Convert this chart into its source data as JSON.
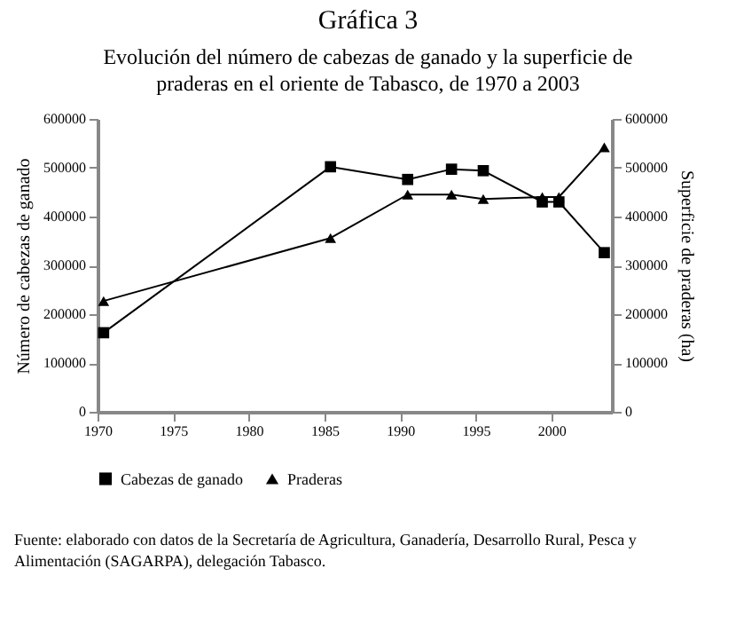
{
  "chart_data": {
    "type": "line",
    "title": "Gráfica 3",
    "subtitle": "Evolución del número de cabezas de ganado y la superficie de praderas en el oriente de Tabasco, de 1970 a 2003",
    "xlabel": null,
    "ylabel": "Número de cabezas de ganado",
    "y2label": "Superficie de praderas (ha)",
    "x": [
      1970.4,
      1985.4,
      1990.5,
      1993.4,
      1995.5,
      1999.4,
      2000.5,
      2003.5
    ],
    "series": [
      {
        "name": "Cabezas de ganado",
        "color": "#000000",
        "marker": "square",
        "values": [
          162000,
          502000,
          476000,
          497000,
          494000,
          430000,
          430000,
          326000
        ]
      },
      {
        "name": "Praderas",
        "color": "#000000",
        "marker": "triangle",
        "axis": "y2",
        "values": [
          227000,
          356000,
          445000,
          445000,
          436000,
          440000,
          440000,
          542000
        ]
      }
    ],
    "xlim": [
      1970,
      2004
    ],
    "xticks": [
      1970,
      1975,
      1980,
      1985,
      1990,
      1995,
      2000
    ],
    "ylim": [
      0,
      600000
    ],
    "yticks": [
      0,
      100000,
      200000,
      300000,
      400000,
      500000,
      600000
    ],
    "y2lim": [
      0,
      600000
    ],
    "y2ticks": [
      0,
      100000,
      200000,
      300000,
      400000,
      500000,
      600000
    ],
    "grid": false,
    "legend": "bottom",
    "annotations": [
      "Fuente: elaborado con datos de la Secretaría de Agricultura, Ganadería, Desarrollo Rural, Pesca y Alimentación (SAGARPA), delegación Tabasco."
    ]
  }
}
